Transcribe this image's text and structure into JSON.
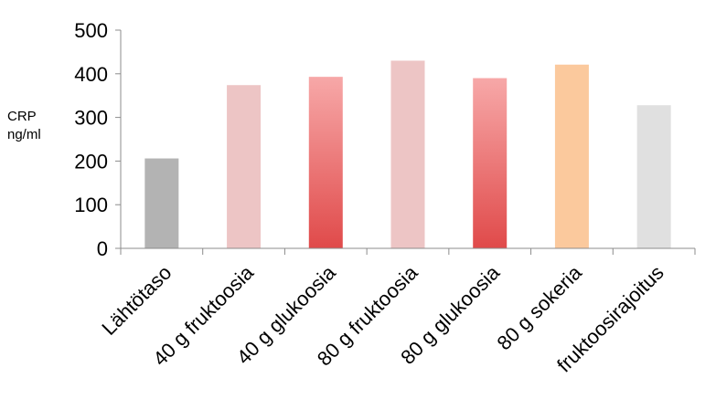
{
  "chart_data": {
    "type": "bar",
    "title": "",
    "xlabel": "",
    "ylabel_line1": "CRP",
    "ylabel_line2": "ng/ml",
    "ylim": [
      0,
      500
    ],
    "yticks": [
      0,
      100,
      200,
      300,
      400,
      500
    ],
    "grid": false,
    "categories": [
      "Lähtötaso",
      "40 g fruktoosia",
      "40 g glukoosia",
      "80 g fruktoosia",
      "80 g glukoosia",
      "80 g sokeria",
      "fruktoosirajoitus"
    ],
    "values": [
      206,
      374,
      393,
      430,
      390,
      421,
      328
    ],
    "bar_colors": [
      {
        "top": "#b3b3b3",
        "bottom": "#b3b3b3"
      },
      {
        "top": "#edc5c5",
        "bottom": "#edc5c5"
      },
      {
        "top": "#f7a8a8",
        "bottom": "#e04a4a"
      },
      {
        "top": "#edc5c5",
        "bottom": "#edc5c5"
      },
      {
        "top": "#f7a8a8",
        "bottom": "#e04a4a"
      },
      {
        "top": "#fbc99d",
        "bottom": "#fbc99d"
      },
      {
        "top": "#e0e0e0",
        "bottom": "#e0e0e0"
      }
    ]
  }
}
